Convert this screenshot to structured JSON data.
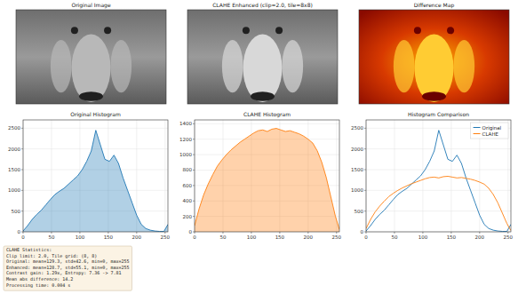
{
  "images": [
    {
      "title": "Original Image",
      "kind": "grayscale"
    },
    {
      "title": "CLAHE Enhanced (clip=2.0, tile=8x8)",
      "kind": "grayscale"
    },
    {
      "title": "Difference Map",
      "kind": "heat"
    }
  ],
  "chart_data": [
    {
      "type": "area",
      "title": "Original Histogram",
      "grid": true,
      "x": [
        0,
        8,
        16,
        24,
        32,
        40,
        48,
        56,
        64,
        72,
        80,
        88,
        96,
        104,
        112,
        120,
        128,
        136,
        144,
        152,
        160,
        168,
        176,
        184,
        192,
        200,
        208,
        216,
        224,
        232,
        240,
        248,
        255
      ],
      "series": [
        {
          "name": "Original",
          "color": "#1f77b4",
          "values": [
            20,
            150,
            300,
            420,
            520,
            650,
            780,
            900,
            980,
            1050,
            1150,
            1250,
            1350,
            1500,
            1700,
            1950,
            2450,
            2100,
            1750,
            1700,
            1850,
            1650,
            1300,
            1000,
            700,
            400,
            180,
            80,
            40,
            20,
            10,
            10,
            180
          ]
        }
      ],
      "xlim": [
        0,
        255
      ],
      "xticks": [
        0,
        50,
        100,
        150,
        200,
        250
      ],
      "ylim": [
        0,
        2700
      ],
      "yticks": [
        0,
        500,
        1000,
        1500,
        2000,
        2500
      ]
    },
    {
      "type": "area",
      "title": "CLAHE Histogram",
      "grid": true,
      "x": [
        0,
        8,
        16,
        24,
        32,
        40,
        48,
        56,
        64,
        72,
        80,
        88,
        96,
        104,
        112,
        120,
        128,
        136,
        144,
        152,
        160,
        168,
        176,
        184,
        192,
        200,
        208,
        216,
        224,
        232,
        240,
        248,
        255
      ],
      "series": [
        {
          "name": "CLAHE",
          "color": "#ff7f0e",
          "values": [
            80,
            300,
            480,
            620,
            740,
            850,
            930,
            1000,
            1060,
            1110,
            1160,
            1200,
            1240,
            1280,
            1310,
            1320,
            1300,
            1330,
            1340,
            1320,
            1300,
            1310,
            1290,
            1270,
            1240,
            1200,
            1150,
            1050,
            900,
            700,
            450,
            200,
            30
          ]
        }
      ],
      "xlim": [
        0,
        255
      ],
      "xticks": [
        0,
        50,
        100,
        150,
        200,
        250
      ],
      "ylim": [
        0,
        1450
      ],
      "yticks": [
        0,
        200,
        400,
        600,
        800,
        1000,
        1200,
        1400
      ]
    },
    {
      "type": "line",
      "title": "Histogram Comparison",
      "grid": true,
      "legend": "upper right",
      "x": [
        0,
        8,
        16,
        24,
        32,
        40,
        48,
        56,
        64,
        72,
        80,
        88,
        96,
        104,
        112,
        120,
        128,
        136,
        144,
        152,
        160,
        168,
        176,
        184,
        192,
        200,
        208,
        216,
        224,
        232,
        240,
        248,
        255
      ],
      "series": [
        {
          "name": "Original",
          "color": "#1f77b4",
          "values": [
            20,
            150,
            300,
            420,
            520,
            650,
            780,
            900,
            980,
            1050,
            1150,
            1250,
            1350,
            1500,
            1700,
            1950,
            2450,
            2100,
            1750,
            1700,
            1850,
            1650,
            1300,
            1000,
            700,
            400,
            180,
            80,
            40,
            20,
            10,
            10,
            180
          ]
        },
        {
          "name": "CLAHE",
          "color": "#ff7f0e",
          "values": [
            80,
            300,
            480,
            620,
            740,
            850,
            930,
            1000,
            1060,
            1110,
            1160,
            1200,
            1240,
            1280,
            1310,
            1320,
            1300,
            1330,
            1340,
            1320,
            1300,
            1310,
            1290,
            1270,
            1240,
            1200,
            1150,
            1050,
            900,
            700,
            450,
            200,
            30
          ]
        }
      ],
      "xlim": [
        0,
        255
      ],
      "xticks": [
        0,
        50,
        100,
        150,
        200,
        250
      ],
      "ylim": [
        0,
        2700
      ],
      "yticks": [
        0,
        500,
        1000,
        1500,
        2000,
        2500
      ]
    }
  ],
  "stats_box": {
    "lines": [
      "CLAHE Statistics:",
      "Clip limit: 2.0, Tile grid: (8, 8)",
      "Original: mean=129.3, std=42.6, min=0, max=255",
      "Enhanced: mean=128.7, std=55.1, min=0, max=255",
      "Contrast gain: 1.29x, Entropy: 7.36 -> 7.81",
      "Mean abs difference: 14.2",
      "Processing time: 0.004 s"
    ]
  }
}
